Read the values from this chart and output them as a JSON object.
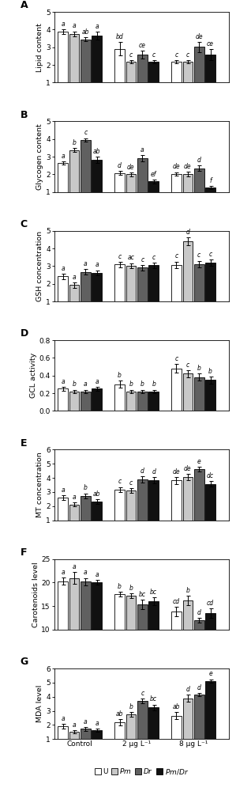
{
  "panels": [
    {
      "label": "A",
      "ylabel": "Lipid content",
      "ylim": [
        1,
        5
      ],
      "yticks": [
        1,
        2,
        3,
        4,
        5
      ],
      "values": [
        [
          3.88,
          3.75,
          3.45,
          3.65
        ],
        [
          2.92,
          2.18,
          2.58,
          2.18
        ],
        [
          2.18,
          2.18,
          3.02,
          2.58
        ]
      ],
      "errors": [
        [
          0.12,
          0.15,
          0.12,
          0.22
        ],
        [
          0.38,
          0.1,
          0.22,
          0.08
        ],
        [
          0.08,
          0.08,
          0.28,
          0.32
        ]
      ],
      "letters": [
        [
          "a",
          "a",
          "ab",
          "a"
        ],
        [
          "bd",
          "c",
          "ce",
          "c"
        ],
        [
          "c",
          "c",
          "de",
          "ce"
        ]
      ]
    },
    {
      "label": "B",
      "ylabel": "Glycogen content",
      "ylim": [
        1,
        5
      ],
      "yticks": [
        1,
        2,
        3,
        4,
        5
      ],
      "values": [
        [
          2.65,
          3.38,
          3.95,
          2.82
        ],
        [
          2.08,
          2.0,
          2.92,
          1.6
        ],
        [
          2.02,
          2.02,
          2.35,
          1.25
        ]
      ],
      "errors": [
        [
          0.08,
          0.1,
          0.1,
          0.18
        ],
        [
          0.1,
          0.1,
          0.18,
          0.1
        ],
        [
          0.1,
          0.12,
          0.15,
          0.1
        ]
      ],
      "letters": [
        [
          "a",
          "b",
          "c",
          "ab"
        ],
        [
          "d",
          "de",
          "a",
          "ef"
        ],
        [
          "de",
          "de",
          "d",
          "f"
        ]
      ]
    },
    {
      "label": "C",
      "ylabel": "GSH concentration",
      "ylim": [
        1,
        5
      ],
      "yticks": [
        1,
        2,
        3,
        4,
        5
      ],
      "values": [
        [
          2.42,
          1.92,
          2.68,
          2.62
        ],
        [
          3.1,
          3.02,
          2.92,
          3.05
        ],
        [
          3.08,
          4.42,
          3.12,
          3.2
        ]
      ],
      "errors": [
        [
          0.15,
          0.15,
          0.15,
          0.15
        ],
        [
          0.15,
          0.15,
          0.15,
          0.15
        ],
        [
          0.18,
          0.22,
          0.18,
          0.18
        ]
      ],
      "letters": [
        [
          "a",
          "a",
          "a",
          "a"
        ],
        [
          "c",
          "ac",
          "c",
          "c"
        ],
        [
          "c",
          "d",
          "c",
          "c"
        ]
      ]
    },
    {
      "label": "D",
      "ylabel": "GCL activity",
      "ylim": [
        0,
        0.8
      ],
      "yticks": [
        0.0,
        0.2,
        0.4,
        0.6,
        0.8
      ],
      "values": [
        [
          0.25,
          0.22,
          0.22,
          0.25
        ],
        [
          0.3,
          0.22,
          0.22,
          0.22
        ],
        [
          0.48,
          0.42,
          0.38,
          0.35
        ]
      ],
      "errors": [
        [
          0.02,
          0.02,
          0.02,
          0.02
        ],
        [
          0.04,
          0.02,
          0.02,
          0.02
        ],
        [
          0.05,
          0.04,
          0.04,
          0.04
        ]
      ],
      "letters": [
        [
          "a",
          "b",
          "a",
          "a"
        ],
        [
          "b",
          "b",
          "b",
          "b"
        ],
        [
          "c",
          "c",
          "b",
          "b"
        ]
      ]
    },
    {
      "label": "E",
      "ylabel": "MT concentration",
      "ylim": [
        1,
        6
      ],
      "yticks": [
        1,
        2,
        3,
        4,
        5,
        6
      ],
      "values": [
        [
          2.6,
          2.12,
          2.72,
          2.32
        ],
        [
          3.18,
          3.1,
          3.88,
          3.82
        ],
        [
          3.82,
          4.05,
          4.62,
          3.58
        ]
      ],
      "errors": [
        [
          0.15,
          0.15,
          0.18,
          0.18
        ],
        [
          0.18,
          0.18,
          0.22,
          0.22
        ],
        [
          0.25,
          0.22,
          0.18,
          0.2
        ]
      ],
      "letters": [
        [
          "a",
          "a",
          "b",
          "ab"
        ],
        [
          "c",
          "c",
          "d",
          "d"
        ],
        [
          "de",
          "de",
          "e",
          "dc"
        ]
      ]
    },
    {
      "label": "F",
      "ylabel": "Carotenoids level",
      "ylim": [
        10,
        25
      ],
      "yticks": [
        10,
        15,
        20,
        25
      ],
      "values": [
        [
          20.3,
          21.0,
          20.2,
          20.0
        ],
        [
          17.5,
          17.2,
          15.3,
          16.0
        ],
        [
          13.8,
          16.2,
          12.0,
          13.5
        ]
      ],
      "errors": [
        [
          0.8,
          1.2,
          0.8,
          0.5
        ],
        [
          0.5,
          0.5,
          1.0,
          0.8
        ],
        [
          1.0,
          1.0,
          0.5,
          1.0
        ]
      ],
      "letters": [
        [
          "a",
          "a",
          "a",
          "a"
        ],
        [
          "b",
          "b",
          "bc",
          "bc"
        ],
        [
          "cd",
          "b",
          "d",
          "cd"
        ]
      ]
    },
    {
      "label": "G",
      "ylabel": "MDA level",
      "ylim": [
        1,
        6
      ],
      "yticks": [
        1,
        2,
        3,
        4,
        5,
        6
      ],
      "values": [
        [
          1.9,
          1.5,
          1.72,
          1.62
        ],
        [
          2.2,
          2.75,
          3.7,
          3.25
        ],
        [
          2.65,
          3.88,
          4.15,
          5.12
        ]
      ],
      "errors": [
        [
          0.18,
          0.12,
          0.12,
          0.1
        ],
        [
          0.22,
          0.18,
          0.18,
          0.2
        ],
        [
          0.25,
          0.25,
          0.12,
          0.12
        ]
      ],
      "letters": [
        [
          "a",
          "a",
          "a",
          "a"
        ],
        [
          "ab",
          "b",
          "c",
          "bc"
        ],
        [
          "ab",
          "d",
          "d",
          "e"
        ]
      ]
    }
  ],
  "groups": [
    "Control",
    "2 μg L⁻¹",
    "8 μg L⁻¹"
  ],
  "bar_colors": [
    "white",
    "#c8c8c8",
    "#606060",
    "#111111"
  ],
  "bar_edgecolor": "black",
  "legend_labels": [
    "U",
    "$\\it{Pm}$",
    "$\\it{Dr}$",
    "$\\it{Pm/Dr}$"
  ]
}
